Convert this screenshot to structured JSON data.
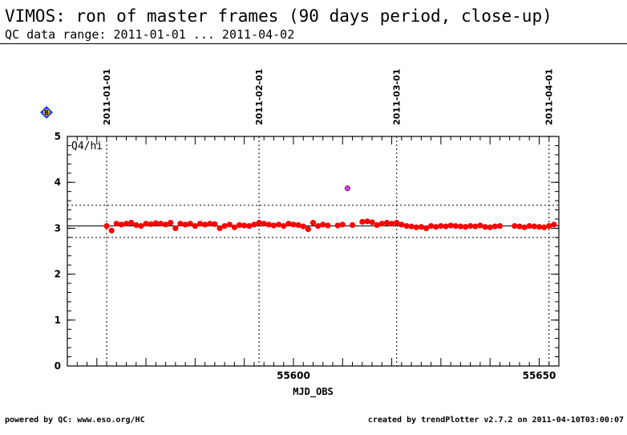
{
  "header": {
    "title": "VIMOS: ron of master frames (90 days period, close-up)",
    "subtitle": "QC data range: 2011-01-01 ... 2011-04-02"
  },
  "footer": {
    "left": "powered by QC: www.eso.org/HC",
    "right": "created by trendPlotter v2.7.2 on 2011-04-10T03:00:07"
  },
  "colors": {
    "points": "#ff0000",
    "outlier": "#8b1a8b",
    "badge": "#1a3cff"
  },
  "legend_badge": {
    "icon": "diamond-icon",
    "text": "B"
  },
  "chart_data": {
    "type": "scatter",
    "panel_label": "Q4/hi",
    "xlabel": "MJD_OBS",
    "ylabel": "",
    "xlim": [
      55554,
      55654
    ],
    "ylim": [
      0,
      5
    ],
    "xticks": [
      55600,
      55650
    ],
    "yticks": [
      0,
      1,
      2,
      3,
      4,
      5
    ],
    "date_markers": [
      {
        "label": "2011-01-01",
        "mjd": 55562
      },
      {
        "label": "2011-02-01",
        "mjd": 55593
      },
      {
        "label": "2011-03-01",
        "mjd": 55621
      },
      {
        "label": "2011-04-01",
        "mjd": 55652
      }
    ],
    "reference_line": 3.05,
    "threshold_lines": [
      2.8,
      3.5
    ],
    "outliers": [
      {
        "x": 55611,
        "y": 3.87
      }
    ],
    "points": [
      [
        55562,
        3.05
      ],
      [
        55563,
        2.95
      ],
      [
        55564,
        3.1
      ],
      [
        55565,
        3.08
      ],
      [
        55566,
        3.1
      ],
      [
        55567,
        3.12
      ],
      [
        55568,
        3.07
      ],
      [
        55569,
        3.05
      ],
      [
        55570,
        3.1
      ],
      [
        55571,
        3.09
      ],
      [
        55572,
        3.11
      ],
      [
        55573,
        3.1
      ],
      [
        55574,
        3.08
      ],
      [
        55575,
        3.12
      ],
      [
        55576,
        3.0
      ],
      [
        55577,
        3.1
      ],
      [
        55578,
        3.08
      ],
      [
        55579,
        3.1
      ],
      [
        55580,
        3.05
      ],
      [
        55581,
        3.1
      ],
      [
        55582,
        3.08
      ],
      [
        55583,
        3.1
      ],
      [
        55584,
        3.09
      ],
      [
        55585,
        3.0
      ],
      [
        55586,
        3.05
      ],
      [
        55587,
        3.08
      ],
      [
        55588,
        3.02
      ],
      [
        55589,
        3.07
      ],
      [
        55590,
        3.06
      ],
      [
        55591,
        3.05
      ],
      [
        55592,
        3.08
      ],
      [
        55593,
        3.12
      ],
      [
        55594,
        3.1
      ],
      [
        55595,
        3.08
      ],
      [
        55596,
        3.06
      ],
      [
        55597,
        3.08
      ],
      [
        55598,
        3.05
      ],
      [
        55599,
        3.1
      ],
      [
        55600,
        3.08
      ],
      [
        55601,
        3.07
      ],
      [
        55602,
        3.04
      ],
      [
        55603,
        2.98
      ],
      [
        55604,
        3.12
      ],
      [
        55605,
        3.05
      ],
      [
        55606,
        3.08
      ],
      [
        55607,
        3.06
      ],
      [
        55609,
        3.06
      ],
      [
        55610,
        3.08
      ],
      [
        55612,
        3.07
      ],
      [
        55614,
        3.14
      ],
      [
        55615,
        3.15
      ],
      [
        55616,
        3.13
      ],
      [
        55617,
        3.07
      ],
      [
        55618,
        3.1
      ],
      [
        55619,
        3.12
      ],
      [
        55620,
        3.1
      ],
      [
        55621,
        3.12
      ],
      [
        55622,
        3.08
      ],
      [
        55623,
        3.05
      ],
      [
        55624,
        3.04
      ],
      [
        55625,
        3.02
      ],
      [
        55626,
        3.03
      ],
      [
        55627,
        3.0
      ],
      [
        55628,
        3.05
      ],
      [
        55629,
        3.03
      ],
      [
        55630,
        3.05
      ],
      [
        55631,
        3.04
      ],
      [
        55632,
        3.06
      ],
      [
        55633,
        3.05
      ],
      [
        55634,
        3.04
      ],
      [
        55635,
        3.03
      ],
      [
        55636,
        3.05
      ],
      [
        55637,
        3.04
      ],
      [
        55638,
        3.06
      ],
      [
        55639,
        3.03
      ],
      [
        55640,
        3.02
      ],
      [
        55641,
        3.04
      ],
      [
        55642,
        3.05
      ],
      [
        55645,
        3.05
      ],
      [
        55646,
        3.04
      ],
      [
        55647,
        3.02
      ],
      [
        55648,
        3.05
      ],
      [
        55649,
        3.04
      ],
      [
        55650,
        3.03
      ],
      [
        55651,
        3.02
      ],
      [
        55652,
        3.05
      ],
      [
        55653,
        3.08
      ]
    ]
  }
}
